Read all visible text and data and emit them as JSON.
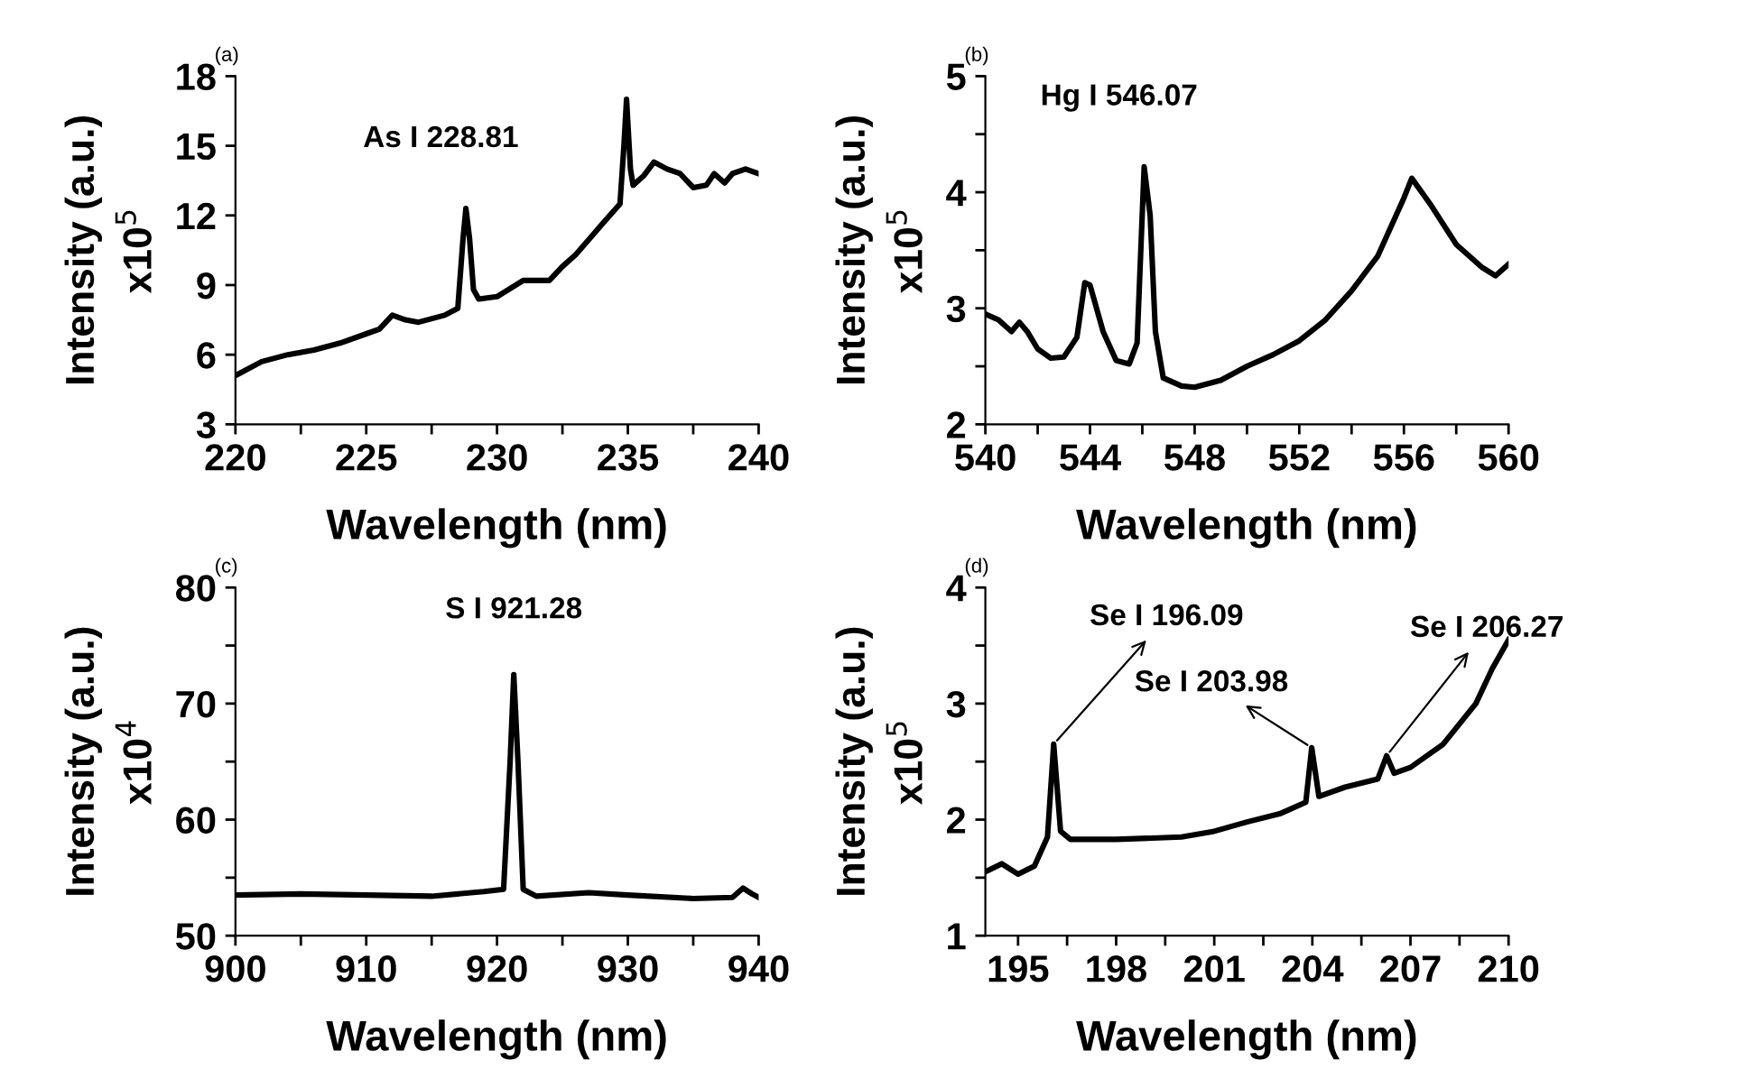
{
  "chart_data": [
    {
      "type": "line",
      "title": "(a)",
      "xlabel": "Wavelength (nm)",
      "ylabel": "Intensity (a.u.)\nx10$^{5}$",
      "xlim": [
        220,
        240
      ],
      "ylim": [
        3,
        18
      ],
      "xticks": [
        220,
        {
          "value": 222.5,
          "label": null
        },
        225,
        {
          "value": 227.5,
          "label": null
        },
        230,
        {
          "value": 232.5,
          "label": null
        },
        235,
        {
          "value": 237.5,
          "label": null
        },
        240
      ],
      "yticks": [
        3,
        6,
        9,
        12,
        15,
        18
      ],
      "grid": false,
      "line_style": "solid",
      "marker": "none",
      "series": [
        {
          "color": "#000000",
          "x": [
            220,
            221,
            222,
            223,
            224,
            225,
            225.5,
            226,
            226.5,
            227,
            228,
            228.5,
            228.7,
            228.81,
            228.95,
            229.1,
            229.3,
            230,
            231,
            232,
            232.5,
            233,
            234,
            234.7,
            234.85,
            234.95,
            235.1,
            235.2,
            235.6,
            236,
            236.5,
            237,
            237.5,
            238,
            238.3,
            238.7,
            239,
            239.5,
            240
          ],
          "values": [
            5.1,
            5.7,
            6.0,
            6.2,
            6.5,
            6.9,
            7.1,
            7.7,
            7.5,
            7.4,
            7.7,
            8.0,
            11,
            12.3,
            11,
            8.8,
            8.4,
            8.5,
            9.2,
            9.2,
            9.8,
            10.3,
            11.6,
            12.5,
            15,
            17.0,
            14,
            13.3,
            13.7,
            14.3,
            14.0,
            13.8,
            13.2,
            13.3,
            13.8,
            13.4,
            13.8,
            14.0,
            13.8
          ]
        }
      ],
      "annotations": [
        {
          "text": "As I 228.81",
          "x": 228.81,
          "y": 12.3
        }
      ]
    },
    {
      "type": "line",
      "title": "(b)",
      "xlabel": "Wavelength (nm)",
      "ylabel": "Intensity (a.u.)\nx10$^{5}$",
      "xlim": [
        540,
        560
      ],
      "ylim": [
        2,
        5
      ],
      "xticks": [
        540,
        {
          "value": 542,
          "label": null
        },
        544,
        {
          "value": 546,
          "label": null
        },
        548,
        {
          "value": 550,
          "label": null
        },
        552,
        {
          "value": 554,
          "label": null
        },
        556,
        {
          "value": 558,
          "label": null
        },
        560
      ],
      "yticks": [
        2,
        {
          "value": 2.5,
          "label": null
        },
        3,
        {
          "value": 3.5,
          "label": null
        },
        4,
        {
          "value": 4.5,
          "label": null
        },
        5
      ],
      "grid": false,
      "line_style": "solid",
      "marker": "none",
      "series": [
        {
          "color": "#000000",
          "x": [
            540,
            540.5,
            541,
            541.3,
            541.6,
            542,
            542.5,
            543,
            543.5,
            543.8,
            544,
            544.5,
            545,
            545.5,
            545.8,
            546.07,
            546.3,
            546.5,
            546.8,
            547.5,
            548,
            549,
            550,
            551,
            552,
            553,
            554,
            555,
            556,
            556.3,
            557,
            558,
            559,
            559.5,
            560
          ],
          "values": [
            2.95,
            2.9,
            2.8,
            2.88,
            2.8,
            2.65,
            2.57,
            2.58,
            2.75,
            3.22,
            3.2,
            2.8,
            2.55,
            2.52,
            2.7,
            4.22,
            3.8,
            2.8,
            2.4,
            2.33,
            2.32,
            2.38,
            2.5,
            2.6,
            2.72,
            2.9,
            3.15,
            3.45,
            3.95,
            4.12,
            3.9,
            3.55,
            3.35,
            3.28,
            3.38
          ]
        }
      ],
      "annotations": [
        {
          "text": "Hg I 546.07",
          "x": 546.07,
          "y": 4.22
        }
      ]
    },
    {
      "type": "line",
      "title": "(c)",
      "xlabel": "Wavelength (nm)",
      "ylabel": "Intensity (a.u.)\nx10$^{4}$",
      "xlim": [
        900,
        940
      ],
      "ylim": [
        50,
        80
      ],
      "xticks": [
        900,
        {
          "value": 905,
          "label": null
        },
        910,
        {
          "value": 915,
          "label": null
        },
        920,
        {
          "value": 925,
          "label": null
        },
        930,
        {
          "value": 935,
          "label": null
        },
        940
      ],
      "yticks": [
        50,
        {
          "value": 55,
          "label": null
        },
        60,
        {
          "value": 65,
          "label": null
        },
        70,
        {
          "value": 75,
          "label": null
        },
        80
      ],
      "grid": false,
      "line_style": "solid",
      "marker": "none",
      "series": [
        {
          "color": "#000000",
          "x": [
            900,
            905,
            910,
            915,
            919,
            920.5,
            921,
            921.28,
            921.6,
            922,
            923,
            927,
            930,
            935,
            938,
            938.8,
            939.5,
            940
          ],
          "values": [
            53.5,
            53.6,
            53.5,
            53.4,
            53.8,
            54,
            65,
            72.5,
            65,
            54,
            53.4,
            53.7,
            53.5,
            53.2,
            53.3,
            54.1,
            53.6,
            53.3
          ]
        }
      ],
      "annotations": [
        {
          "text": "S I 921.28",
          "x": 921.28,
          "y": 72.5
        }
      ]
    },
    {
      "type": "line",
      "title": "(d)",
      "xlabel": "Wavelength (nm)",
      "ylabel": "Intensity (a.u.)\nx10$^{5}$",
      "xlim": [
        194,
        210
      ],
      "ylim": [
        1,
        4
      ],
      "xticks": [
        195,
        {
          "value": 196.5,
          "label": null
        },
        198,
        {
          "value": 199.5,
          "label": null
        },
        201,
        {
          "value": 202.5,
          "label": null
        },
        204,
        {
          "value": 205.5,
          "label": null
        },
        207,
        {
          "value": 208.5,
          "label": null
        },
        210
      ],
      "yticks": [
        1,
        {
          "value": 1.5,
          "label": null
        },
        2,
        {
          "value": 2.5,
          "label": null
        },
        3,
        {
          "value": 3.5,
          "label": null
        },
        4
      ],
      "grid": false,
      "line_style": "solid",
      "marker": "none",
      "series": [
        {
          "color": "#000000",
          "x": [
            194,
            194.5,
            195,
            195.5,
            195.9,
            196.09,
            196.3,
            196.6,
            198,
            200,
            201,
            202,
            203,
            203.8,
            203.98,
            204.2,
            205,
            206,
            206.27,
            206.5,
            207,
            208,
            209,
            209.5,
            210
          ],
          "values": [
            1.55,
            1.62,
            1.53,
            1.6,
            1.85,
            2.65,
            1.9,
            1.83,
            1.83,
            1.85,
            1.9,
            1.98,
            2.05,
            2.15,
            2.62,
            2.2,
            2.28,
            2.35,
            2.55,
            2.4,
            2.45,
            2.65,
            3.0,
            3.3,
            3.55
          ]
        }
      ],
      "annotations": [
        {
          "text": "Se I 196.09",
          "x": 196.09,
          "y": 2.65
        },
        {
          "text": "Se I 203.98",
          "x": 203.98,
          "y": 2.62
        },
        {
          "text": "Se I 206.27",
          "x": 206.27,
          "y": 2.55
        }
      ]
    }
  ]
}
